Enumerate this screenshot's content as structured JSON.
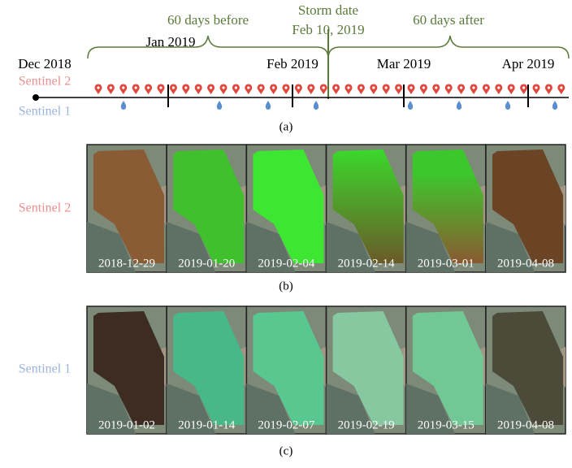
{
  "timeline": {
    "before_label": "60 days before",
    "storm_label": "Storm date",
    "storm_date": "Feb 10, 2019",
    "after_label": "60 days after",
    "months": [
      "Dec 2018",
      "Jan 2019",
      "Feb 2019",
      "Mar 2019",
      "Apr 2019"
    ],
    "sentinel2_label": "Sentinel 2",
    "sentinel1_label": "Sentinel 1",
    "caption": "(a)"
  },
  "sentinel2_panel": {
    "label": "Sentinel 2",
    "dates": [
      "2018-12-29",
      "2019-01-20",
      "2019-02-04",
      "2019-02-14",
      "2019-03-01",
      "2019-04-08"
    ],
    "caption": "(b)"
  },
  "sentinel1_panel": {
    "label": "Sentinel 1",
    "dates": [
      "2019-01-02",
      "2019-01-14",
      "2019-02-07",
      "2019-02-19",
      "2019-03-15",
      "2019-04-08"
    ],
    "caption": "(c)"
  }
}
